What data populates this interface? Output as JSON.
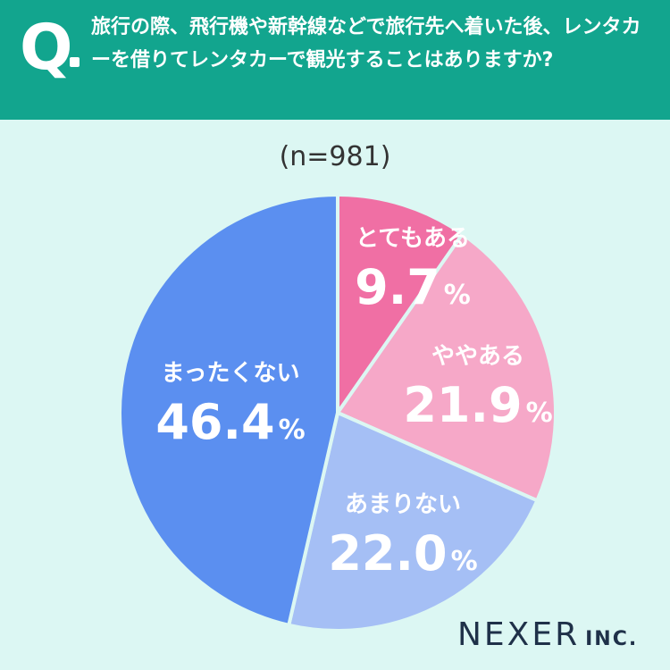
{
  "question": {
    "mark": "Q",
    "text": "旅行の際、飛行機や新幹線などで旅行先へ着いた後、レンタカーを借りてレンタカーで観光することはありますか?"
  },
  "chart_data": {
    "type": "pie",
    "subtitle": "(n=981)",
    "unit": "%",
    "slices": [
      {
        "label": "とてもある",
        "value": 9.7,
        "color": "#f06fa4"
      },
      {
        "label": "ややある",
        "value": 21.9,
        "color": "#f6a8c8"
      },
      {
        "label": "あまりない",
        "value": 22.0,
        "color": "#a5bff5"
      },
      {
        "label": "まったくない",
        "value": 46.4,
        "color": "#5b8ff0"
      }
    ]
  },
  "logo": {
    "main": "NEXER",
    "sub": "INC."
  }
}
